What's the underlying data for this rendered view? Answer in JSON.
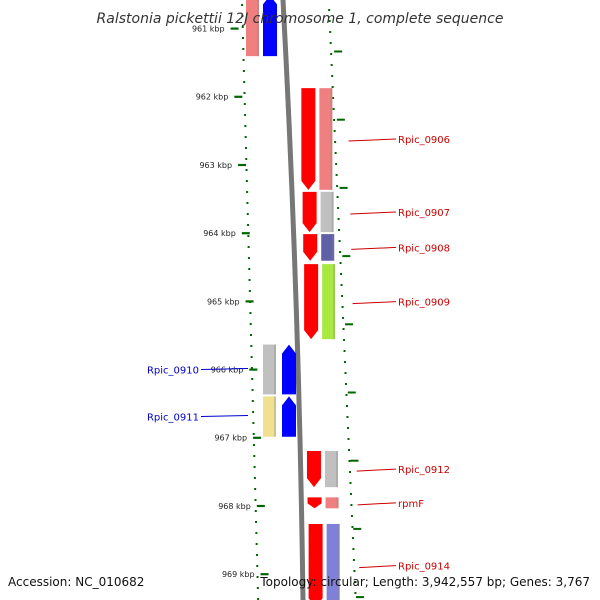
{
  "title": "Ralstonia pickettii 12J chromosome 1, complete sequence",
  "footer": {
    "accession": "Accession: NC_010682",
    "summary": "Topology: circular; Length: 3,942,557 bp; Genes: 3,767"
  },
  "axis_ticks": [
    {
      "kbp": 961,
      "label": "961 kbp"
    },
    {
      "kbp": 962,
      "label": "962 kbp"
    },
    {
      "kbp": 963,
      "label": "963 kbp"
    },
    {
      "kbp": 964,
      "label": "964 kbp"
    },
    {
      "kbp": 965,
      "label": "965 kbp"
    },
    {
      "kbp": 966,
      "label": "966 kbp"
    },
    {
      "kbp": 967,
      "label": "967 kbp"
    },
    {
      "kbp": 968,
      "label": "968 kbp"
    },
    {
      "kbp": 969,
      "label": "969 kbp"
    }
  ],
  "colors": {
    "forward_gene": "#ff0000",
    "reverse_gene": "#0000ff",
    "forward_label": "#cc0000",
    "reverse_label": "#0000cc",
    "axis_tick": "#006600",
    "backbone": "#777777"
  },
  "genes": [
    {
      "label": "",
      "strand": "reverse",
      "start": 960.5,
      "end": 961.42,
      "cog_color": "#f08080"
    },
    {
      "label": "Rpic_0906",
      "strand": "forward",
      "start": 961.86,
      "end": 963.38,
      "cog_color": "#f08080"
    },
    {
      "label": "Rpic_0907",
      "strand": "forward",
      "start": 963.38,
      "end": 964.0,
      "cog_color": "#c0c0c0"
    },
    {
      "label": "Rpic_0908",
      "strand": "forward",
      "start": 964.0,
      "end": 964.42,
      "cog_color": "#6060a8"
    },
    {
      "label": "Rpic_0909",
      "strand": "forward",
      "start": 964.44,
      "end": 965.57,
      "cog_color": "#a8e840"
    },
    {
      "label": "Rpic_0910",
      "strand": "reverse",
      "start": 965.62,
      "end": 966.38,
      "cog_color": "#c0c0c0"
    },
    {
      "label": "Rpic_0911",
      "strand": "reverse",
      "start": 966.38,
      "end": 967.0,
      "cog_color": "#f0e090"
    },
    {
      "label": "Rpic_0912",
      "strand": "forward",
      "start": 967.18,
      "end": 967.74,
      "cog_color": "#c0c0c0"
    },
    {
      "label": "rpmF",
      "strand": "forward",
      "start": 967.86,
      "end": 968.05,
      "cog_color": "#f08080"
    },
    {
      "label": "Rpic_0914",
      "strand": "forward",
      "start": 968.25,
      "end": 969.5,
      "cog_color": "#8080d8"
    }
  ]
}
